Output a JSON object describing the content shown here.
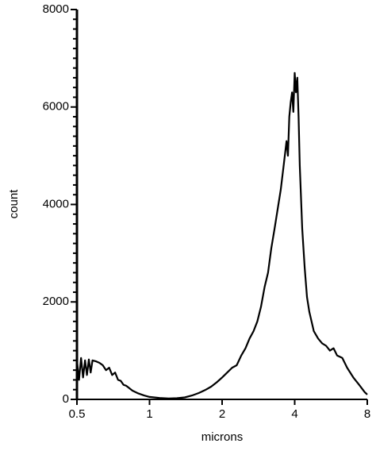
{
  "chart_data": {
    "type": "line",
    "xlabel": "microns",
    "ylabel": "count",
    "xscale": "log",
    "xlim": [
      0.5,
      8
    ],
    "xticks": [
      0.5,
      1,
      2,
      4,
      8
    ],
    "ylim": [
      0,
      8000
    ],
    "yticks": [
      0,
      2000,
      4000,
      6000,
      8000
    ],
    "x": [
      0.5,
      0.51,
      0.52,
      0.53,
      0.54,
      0.55,
      0.56,
      0.57,
      0.58,
      0.6,
      0.62,
      0.64,
      0.66,
      0.68,
      0.7,
      0.72,
      0.74,
      0.76,
      0.78,
      0.8,
      0.85,
      0.9,
      0.95,
      1.0,
      1.1,
      1.2,
      1.3,
      1.4,
      1.5,
      1.6,
      1.7,
      1.8,
      1.9,
      2.0,
      2.1,
      2.2,
      2.3,
      2.4,
      2.5,
      2.6,
      2.7,
      2.8,
      2.9,
      3.0,
      3.1,
      3.2,
      3.3,
      3.4,
      3.5,
      3.6,
      3.7,
      3.75,
      3.8,
      3.85,
      3.9,
      3.95,
      4.0,
      4.05,
      4.1,
      4.15,
      4.2,
      4.3,
      4.4,
      4.5,
      4.6,
      4.8,
      5.0,
      5.2,
      5.4,
      5.6,
      5.8,
      6.0,
      6.3,
      6.6,
      7.0,
      7.4,
      7.8,
      8.0
    ],
    "series": [
      {
        "color": "#000000",
        "values": [
          800,
          400,
          850,
          450,
          800,
          500,
          820,
          550,
          800,
          780,
          750,
          700,
          600,
          650,
          500,
          550,
          400,
          380,
          300,
          280,
          180,
          120,
          80,
          50,
          30,
          20,
          25,
          40,
          80,
          130,
          190,
          260,
          350,
          450,
          550,
          650,
          700,
          900,
          1050,
          1250,
          1400,
          1600,
          1900,
          2300,
          2600,
          3100,
          3500,
          3900,
          4300,
          4800,
          5300,
          5000,
          5800,
          6100,
          6300,
          5900,
          6700,
          6300,
          6600,
          5800,
          4800,
          3500,
          2700,
          2100,
          1800,
          1400,
          1250,
          1150,
          1100,
          1000,
          1050,
          900,
          850,
          650,
          450,
          300,
          150,
          100
        ]
      }
    ]
  }
}
